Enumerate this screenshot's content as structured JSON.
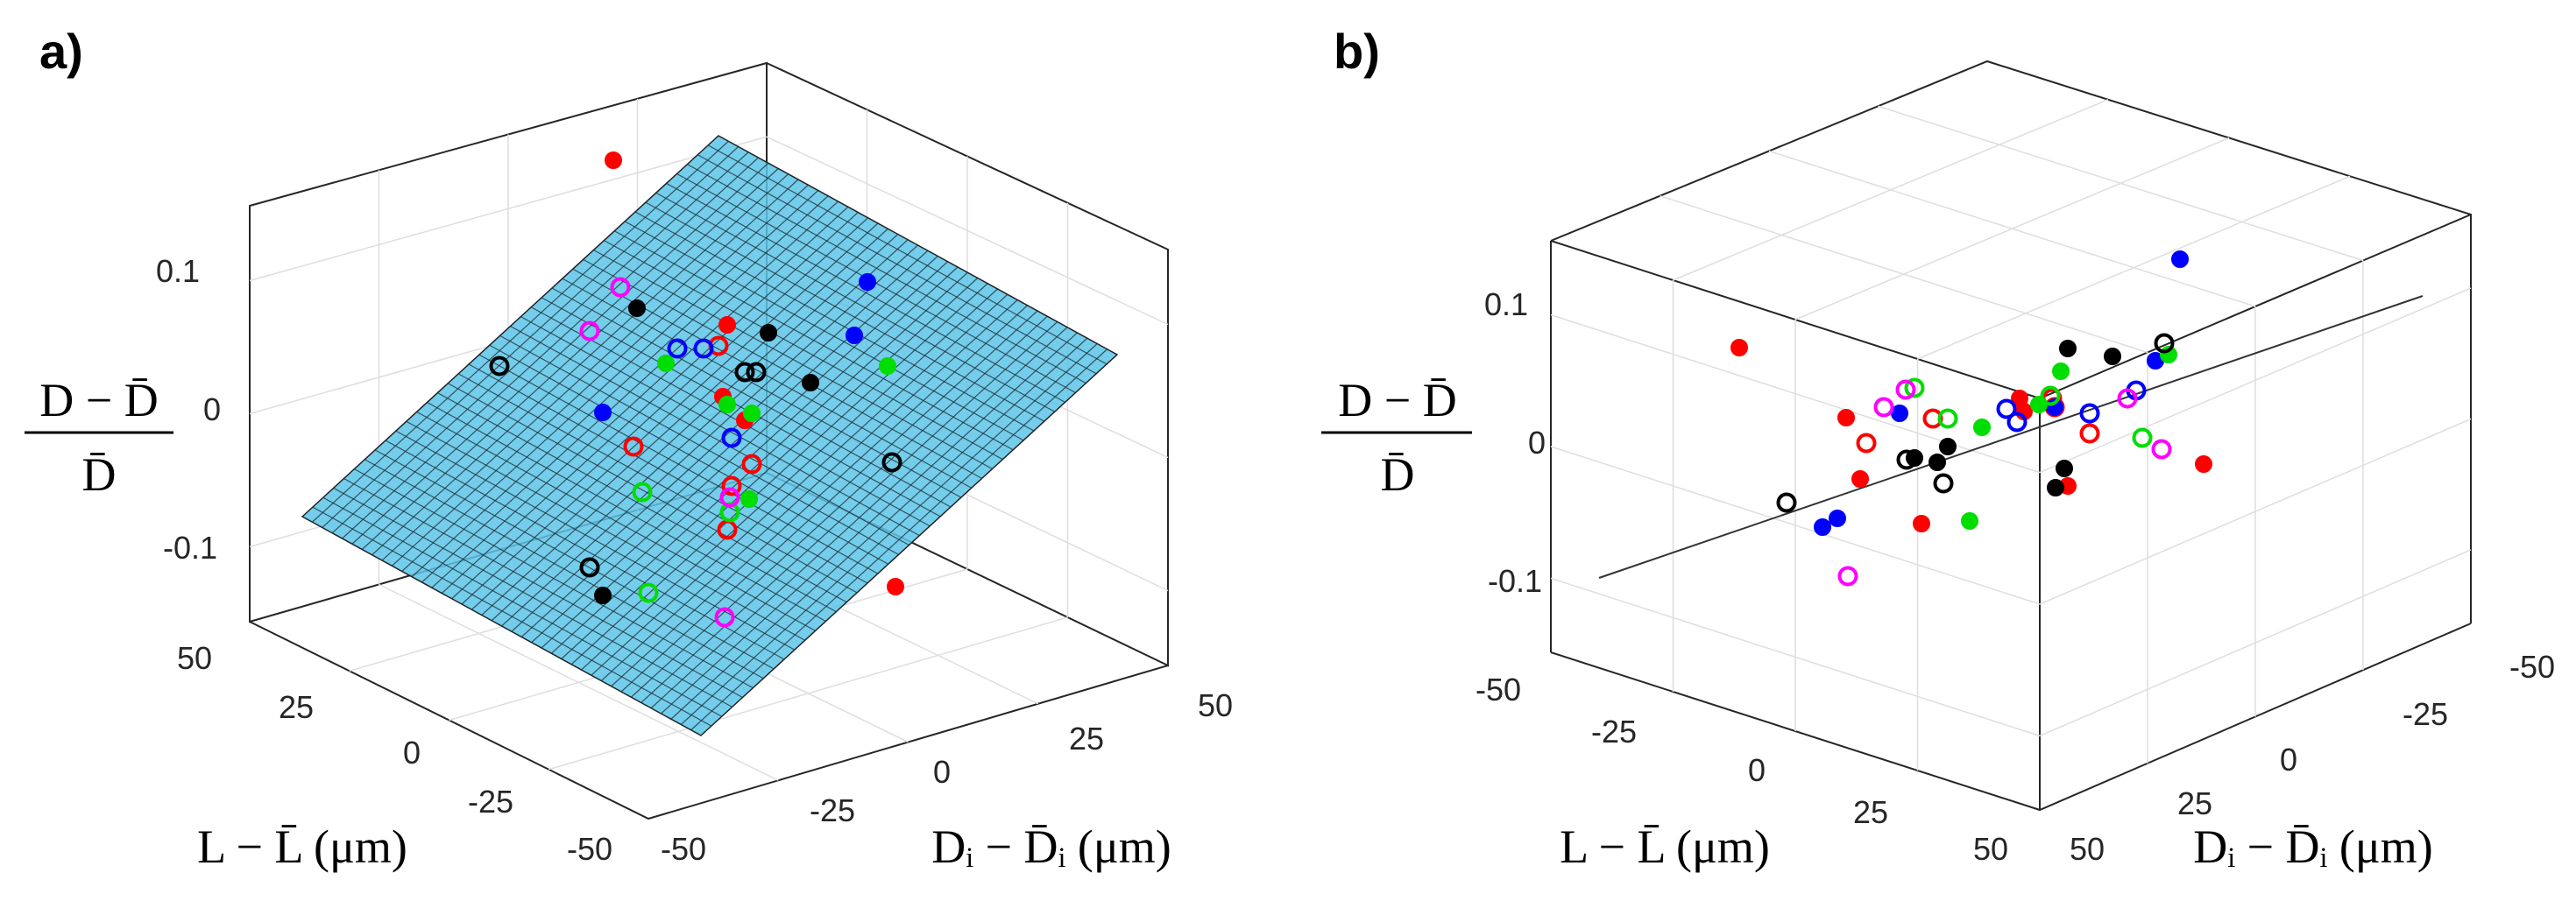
{
  "figure": {
    "colors": {
      "red": "#ff0000",
      "blue": "#0000ff",
      "green": "#00dd00",
      "black": "#000000",
      "magenta": "#ff00ff",
      "surface": "#5bc4e8",
      "fit_line": "#333333"
    }
  },
  "chart_data": [
    {
      "panel_label": "a)",
      "type": "scatter3d",
      "view": "oblique",
      "surface": "fitted plane (light blue mesh)",
      "zlabel_num": "D − D̄",
      "zlabel_den": "D̄",
      "xlabel": "L − L̄ (μm)",
      "ylabel": "Dᵢ − D̄ᵢ (μm)",
      "ztick_labels": [
        "0.1",
        "0",
        "-0.1"
      ],
      "xtick_labels": [
        "50",
        "25",
        "0",
        "-25",
        "-50"
      ],
      "ytick_labels": [
        "-50",
        "-25",
        "0",
        "25",
        "50"
      ],
      "points": [
        {
          "color": "red",
          "filled": true
        },
        {
          "color": "red",
          "filled": true
        },
        {
          "color": "red",
          "filled": true
        },
        {
          "color": "red",
          "filled": true
        },
        {
          "color": "red",
          "filled": false
        },
        {
          "color": "red",
          "filled": false
        },
        {
          "color": "red",
          "filled": false
        },
        {
          "color": "red",
          "filled": false
        },
        {
          "color": "red",
          "filled": false
        },
        {
          "color": "red",
          "filled": true
        },
        {
          "color": "blue",
          "filled": true
        },
        {
          "color": "blue",
          "filled": true
        },
        {
          "color": "blue",
          "filled": true
        },
        {
          "color": "blue",
          "filled": false
        },
        {
          "color": "blue",
          "filled": false
        },
        {
          "color": "blue",
          "filled": false
        },
        {
          "color": "green",
          "filled": true
        },
        {
          "color": "green",
          "filled": true
        },
        {
          "color": "green",
          "filled": true
        },
        {
          "color": "green",
          "filled": true
        },
        {
          "color": "green",
          "filled": true
        },
        {
          "color": "green",
          "filled": false
        },
        {
          "color": "green",
          "filled": false
        },
        {
          "color": "green",
          "filled": false
        },
        {
          "color": "black",
          "filled": true
        },
        {
          "color": "black",
          "filled": true
        },
        {
          "color": "black",
          "filled": true
        },
        {
          "color": "black",
          "filled": true
        },
        {
          "color": "black",
          "filled": false
        },
        {
          "color": "black",
          "filled": false
        },
        {
          "color": "black",
          "filled": false
        },
        {
          "color": "black",
          "filled": false
        },
        {
          "color": "black",
          "filled": false
        },
        {
          "color": "magenta",
          "filled": false
        },
        {
          "color": "magenta",
          "filled": false
        },
        {
          "color": "magenta",
          "filled": false
        },
        {
          "color": "magenta",
          "filled": false
        }
      ]
    },
    {
      "panel_label": "b)",
      "type": "scatter3d",
      "view": "edge-on to fitted plane",
      "surface": "fitted plane seen edge-on (line)",
      "zlabel_num": "D − D̄",
      "zlabel_den": "D̄",
      "xlabel": "L − L̄ (μm)",
      "ylabel": "Dᵢ − D̄ᵢ (μm)",
      "ztick_labels": [
        "0.1",
        "0",
        "-0.1"
      ],
      "xtick_labels": [
        "-50",
        "-25",
        "0",
        "25",
        "50"
      ],
      "ytick_labels": [
        "-50",
        "-25",
        "0",
        "25",
        "50"
      ],
      "points": [
        {
          "color": "red",
          "filled": true
        },
        {
          "color": "red",
          "filled": true
        },
        {
          "color": "red",
          "filled": true
        },
        {
          "color": "red",
          "filled": true
        },
        {
          "color": "red",
          "filled": true
        },
        {
          "color": "red",
          "filled": true
        },
        {
          "color": "red",
          "filled": true
        },
        {
          "color": "red",
          "filled": true
        },
        {
          "color": "red",
          "filled": false
        },
        {
          "color": "red",
          "filled": false
        },
        {
          "color": "red",
          "filled": false
        },
        {
          "color": "red",
          "filled": false
        },
        {
          "color": "red",
          "filled": false
        },
        {
          "color": "blue",
          "filled": true
        },
        {
          "color": "blue",
          "filled": true
        },
        {
          "color": "blue",
          "filled": true
        },
        {
          "color": "blue",
          "filled": true
        },
        {
          "color": "blue",
          "filled": true
        },
        {
          "color": "blue",
          "filled": true
        },
        {
          "color": "blue",
          "filled": false
        },
        {
          "color": "blue",
          "filled": false
        },
        {
          "color": "blue",
          "filled": false
        },
        {
          "color": "blue",
          "filled": false
        },
        {
          "color": "green",
          "filled": true
        },
        {
          "color": "green",
          "filled": true
        },
        {
          "color": "green",
          "filled": true
        },
        {
          "color": "green",
          "filled": true
        },
        {
          "color": "green",
          "filled": true
        },
        {
          "color": "green",
          "filled": false
        },
        {
          "color": "green",
          "filled": false
        },
        {
          "color": "green",
          "filled": false
        },
        {
          "color": "green",
          "filled": false
        },
        {
          "color": "black",
          "filled": true
        },
        {
          "color": "black",
          "filled": true
        },
        {
          "color": "black",
          "filled": true
        },
        {
          "color": "black",
          "filled": true
        },
        {
          "color": "black",
          "filled": true
        },
        {
          "color": "black",
          "filled": true
        },
        {
          "color": "black",
          "filled": true
        },
        {
          "color": "black",
          "filled": false
        },
        {
          "color": "black",
          "filled": false
        },
        {
          "color": "black",
          "filled": false
        },
        {
          "color": "black",
          "filled": false
        },
        {
          "color": "magenta",
          "filled": false
        },
        {
          "color": "magenta",
          "filled": false
        },
        {
          "color": "magenta",
          "filled": false
        },
        {
          "color": "magenta",
          "filled": false
        },
        {
          "color": "magenta",
          "filled": false
        }
      ]
    }
  ]
}
